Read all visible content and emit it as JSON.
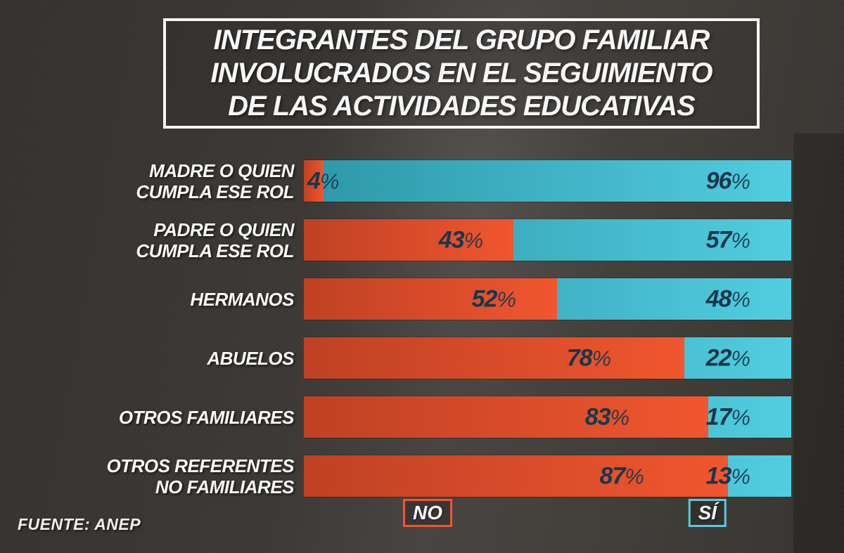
{
  "title": {
    "lines": [
      "INTEGRANTES DEL GRUPO FAMILIAR",
      "INVOLUCRADOS EN EL SEGUIMIENTO",
      "DE LAS ACTIVIDADES EDUCATIVAS"
    ]
  },
  "source": "FUENTE: ANEP",
  "legend": {
    "no_label": "NO",
    "si_label": "SÍ"
  },
  "colors": {
    "no_bright": "#f0562f",
    "no_dark": "#bf4124",
    "si_bright": "#52cde0",
    "si_dark": "#2d97a8",
    "value_text": "#16384c",
    "background": "#3f3b38",
    "title_text": "#f7f7f7"
  },
  "chart_data": {
    "type": "bar",
    "orientation": "horizontal-stacked",
    "unit": "%",
    "title": "Integrantes del grupo familiar involucrados en el seguimiento de las actividades educativas",
    "categories": [
      [
        "MADRE O QUIEN",
        "CUMPLA ESE ROL"
      ],
      [
        "PADRE O QUIEN",
        "CUMPLA ESE ROL"
      ],
      [
        "HERMANOS"
      ],
      [
        "ABUELOS"
      ],
      [
        "OTROS FAMILIARES"
      ],
      [
        "OTROS REFERENTES",
        "NO FAMILIARES"
      ]
    ],
    "series": [
      {
        "name": "NO",
        "values": [
          4,
          43,
          52,
          78,
          83,
          87
        ]
      },
      {
        "name": "SÍ",
        "values": [
          96,
          57,
          48,
          22,
          17,
          13
        ]
      }
    ],
    "xlim": [
      0,
      100
    ],
    "legend_position": "bottom",
    "grid": false,
    "source": "FUENTE: ANEP"
  }
}
